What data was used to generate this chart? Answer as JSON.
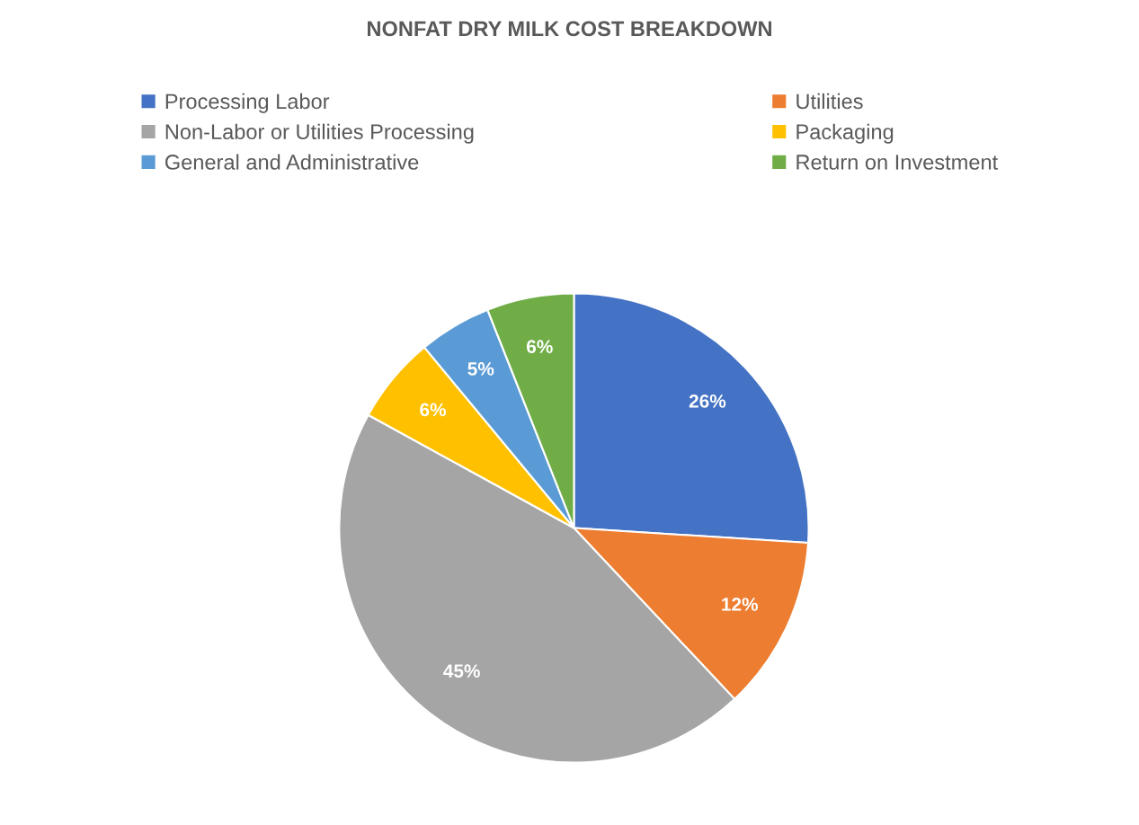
{
  "chart_data": {
    "type": "pie",
    "title": "NONFAT DRY MILK COST BREAKDOWN",
    "categories": [
      "Processing Labor",
      "Utilities",
      "Non-Labor or Utilities Processing",
      "Packaging",
      "General and Administrative",
      "Return on Investment"
    ],
    "values": [
      26,
      12,
      45,
      6,
      5,
      6
    ],
    "colors": [
      "#4472c4",
      "#ed7d31",
      "#a5a5a5",
      "#ffc000",
      "#5b9bd5",
      "#70ad47"
    ],
    "value_labels": [
      "26%",
      "12%",
      "45%",
      "6%",
      "5%",
      "6%"
    ],
    "legend": "top"
  }
}
